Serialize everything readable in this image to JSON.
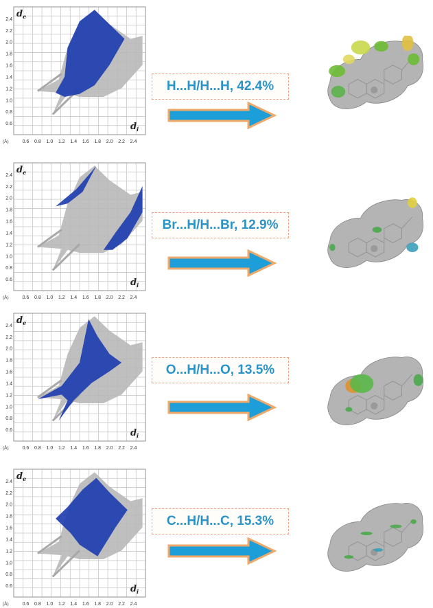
{
  "panels": [
    {
      "label": "H...H/H...H, 42.4%",
      "axis_de": "d",
      "axis_de_sub": "e",
      "axis_di": "d",
      "axis_di_sub": "i",
      "unit": "(Å)"
    },
    {
      "label": "Br...H/H...Br, 12.9%",
      "axis_de": "d",
      "axis_de_sub": "e",
      "axis_di": "d",
      "axis_di_sub": "i",
      "unit": "(Å)"
    },
    {
      "label": "O...H/H...O, 13.5%",
      "axis_de": "d",
      "axis_de_sub": "e",
      "axis_di": "d",
      "axis_di_sub": "i",
      "unit": "(Å)"
    },
    {
      "label": "C...H/H...C, 15.3%",
      "axis_de": "d",
      "axis_de_sub": "e",
      "axis_di": "d",
      "axis_di_sub": "i",
      "unit": "(Å)"
    }
  ],
  "ticks_y": [
    "2.4",
    "2.2",
    "2.0",
    "1.8",
    "1.6",
    "1.4",
    "1.2",
    "1.0",
    "0.8",
    "0.6"
  ],
  "ticks_x": [
    "0.6",
    "0.8",
    "1.0",
    "1.2",
    "1.4",
    "1.6",
    "1.8",
    "2.0",
    "2.2",
    "2.4"
  ],
  "colors": {
    "highlight": "#1f3fb0",
    "background_points": "#b8b8b8",
    "label_text": "#2a93c8",
    "label_border": "#f0a080",
    "arrow": "#1e9ed8",
    "arrow_outline": "#f0a868",
    "surface": "#b4b4b4"
  },
  "icons": {
    "arrow": "right-arrow-icon",
    "surface": "hirshfeld-surface-icon"
  }
}
